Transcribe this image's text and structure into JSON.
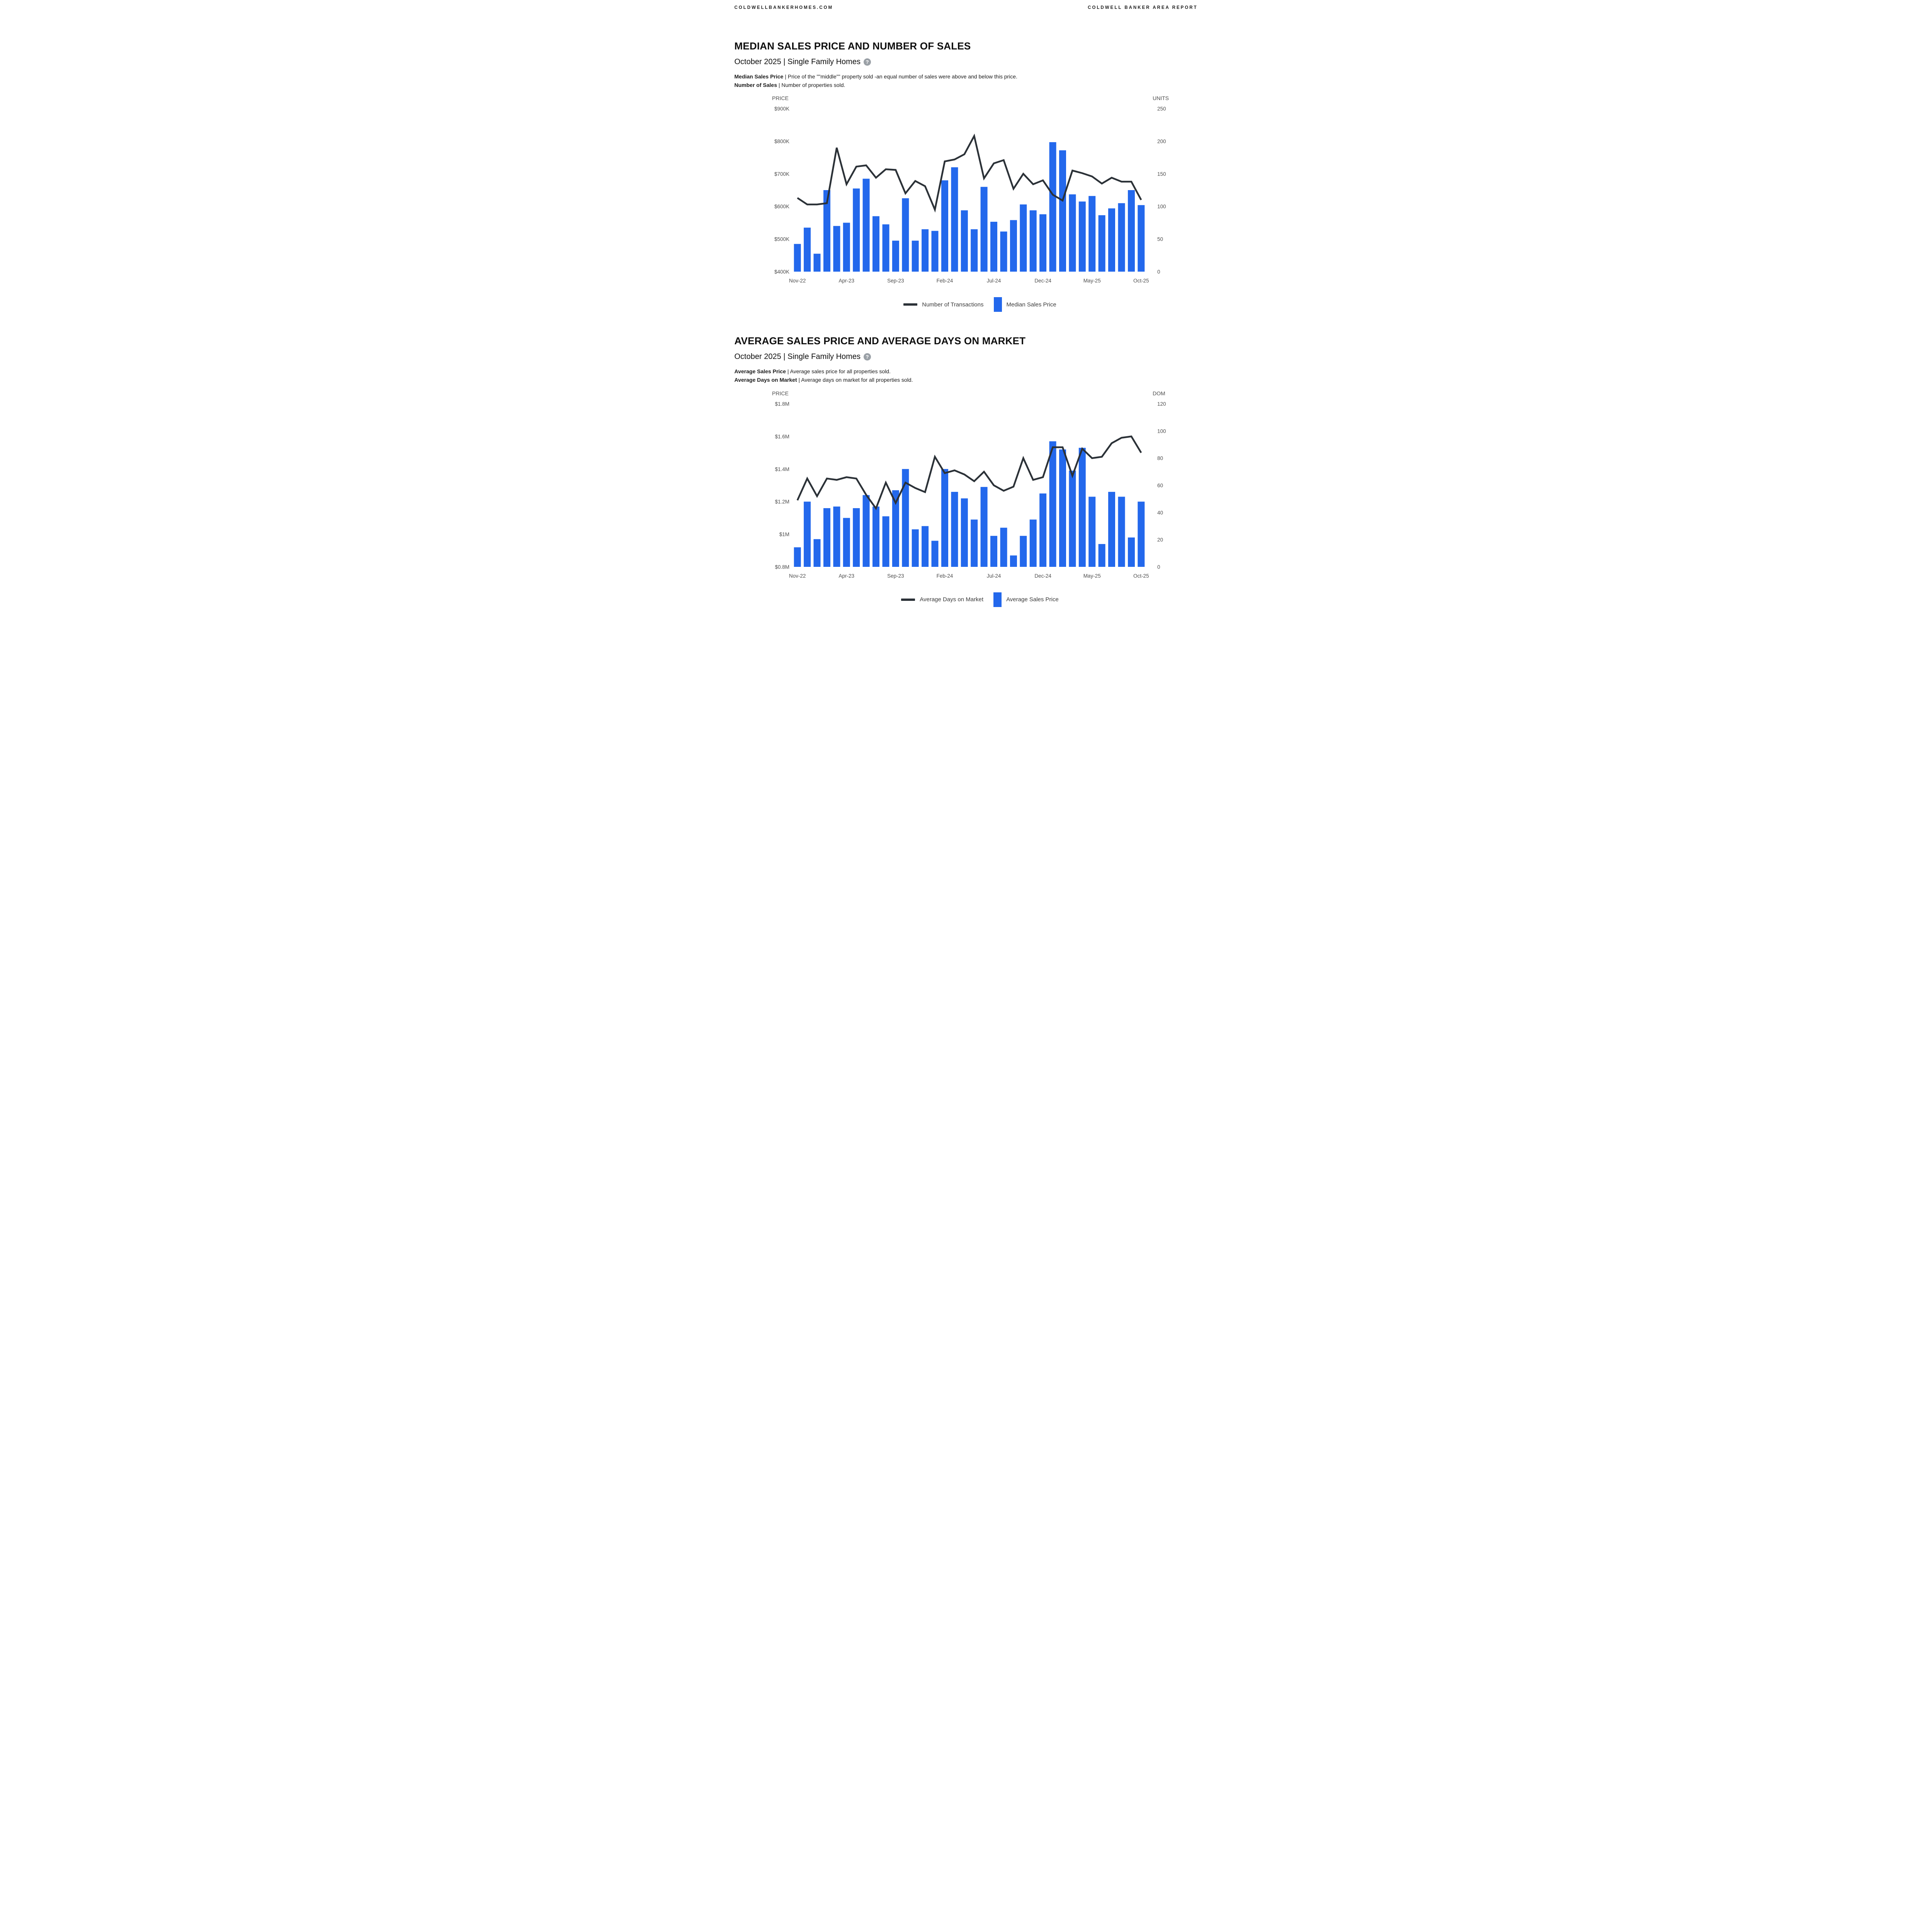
{
  "header": {
    "left": "COLDWELLBANKERHOMES.COM",
    "right": "COLDWELL BANKER AREA REPORT"
  },
  "sections": [
    {
      "title": "MEDIAN SALES PRICE AND NUMBER OF SALES",
      "subtitle": "October 2025 | Single Family Homes",
      "help_icon": "question-circle-icon",
      "definitions": [
        {
          "term": "Median Sales Price",
          "text": "| Price of the \"\"middle\"\" property sold -an equal number of sales were above and below this price."
        },
        {
          "term": "Number of Sales",
          "text": "| Number of properties sold."
        }
      ],
      "legend": [
        {
          "swatch": "line",
          "label": "Number of Transactions"
        },
        {
          "swatch": "bar",
          "label": "Median Sales Price"
        }
      ]
    },
    {
      "title": "AVERAGE SALES PRICE AND AVERAGE DAYS ON MARKET",
      "subtitle": "October 2025 | Single Family Homes",
      "help_icon": "question-circle-icon",
      "definitions": [
        {
          "term": "Average Sales Price",
          "text": "| Average sales price for all properties sold."
        },
        {
          "term": "Average Days on Market",
          "text": "| Average days on market for all properties sold."
        }
      ],
      "legend": [
        {
          "swatch": "line",
          "label": "Average Days on Market"
        },
        {
          "swatch": "bar",
          "label": "Average Sales Price"
        }
      ]
    }
  ],
  "chart_data": [
    {
      "type": "bar",
      "title": "Median Sales Price and Number of Sales",
      "categories": [
        "Nov-22",
        "Dec-22",
        "Jan-23",
        "Feb-23",
        "Mar-23",
        "Apr-23",
        "May-23",
        "Jun-23",
        "Jul-23",
        "Aug-23",
        "Sep-23",
        "Oct-23",
        "Nov-23",
        "Dec-23",
        "Jan-24",
        "Feb-24",
        "Mar-24",
        "Apr-24",
        "May-24",
        "Jun-24",
        "Jul-24",
        "Aug-24",
        "Sep-24",
        "Oct-24",
        "Nov-24",
        "Dec-24",
        "Jan-25",
        "Feb-25",
        "Mar-25",
        "Apr-25",
        "May-25",
        "Jun-25",
        "Jul-25",
        "Aug-25",
        "Sep-25",
        "Oct-25"
      ],
      "x_ticks": [
        {
          "index": 0,
          "label": "Nov-22"
        },
        {
          "index": 5,
          "label": "Apr-23"
        },
        {
          "index": 10,
          "label": "Sep-23"
        },
        {
          "index": 15,
          "label": "Feb-24"
        },
        {
          "index": 20,
          "label": "Jul-24"
        },
        {
          "index": 25,
          "label": "Dec-24"
        },
        {
          "index": 30,
          "label": "May-25"
        },
        {
          "index": 35,
          "label": "Oct-25"
        }
      ],
      "left_axis": {
        "label": "PRICE",
        "ticks": [
          "$900K",
          "$800K",
          "$700K",
          "$600K",
          "$500K",
          "$400K"
        ],
        "min": 400000,
        "max": 900000
      },
      "right_axis": {
        "label": "UNITS",
        "ticks": [
          "250",
          "200",
          "150",
          "100",
          "50",
          "0"
        ],
        "min": 0,
        "max": 250
      },
      "grid": false,
      "legend_position": "bottom",
      "series": [
        {
          "name": "Median Sales Price",
          "type": "bar",
          "axis": "left",
          "values": [
            485000,
            535000,
            455000,
            650000,
            540000,
            550000,
            655000,
            685000,
            570000,
            545000,
            495000,
            625000,
            495000,
            530000,
            525000,
            680000,
            720000,
            588000,
            530000,
            660000,
            553000,
            523000,
            558000,
            606000,
            588000,
            576000,
            797000,
            772000,
            637000,
            615000,
            632000,
            573000,
            594000,
            610000,
            650000,
            604000
          ]
        },
        {
          "name": "Number of Transactions",
          "type": "line",
          "axis": "right",
          "values": [
            113,
            103,
            103,
            105,
            190,
            134,
            161,
            163,
            144,
            157,
            156,
            120,
            139,
            131,
            95,
            169,
            172,
            180,
            208,
            143,
            166,
            171,
            127,
            150,
            134,
            140,
            118,
            109,
            155,
            151,
            146,
            135,
            144,
            138,
            138,
            110
          ]
        }
      ]
    },
    {
      "type": "bar",
      "title": "Average Sales Price and Average Days on Market",
      "categories": [
        "Nov-22",
        "Dec-22",
        "Jan-23",
        "Feb-23",
        "Mar-23",
        "Apr-23",
        "May-23",
        "Jun-23",
        "Jul-23",
        "Aug-23",
        "Sep-23",
        "Oct-23",
        "Nov-23",
        "Dec-23",
        "Jan-24",
        "Feb-24",
        "Mar-24",
        "Apr-24",
        "May-24",
        "Jun-24",
        "Jul-24",
        "Aug-24",
        "Sep-24",
        "Oct-24",
        "Nov-24",
        "Dec-24",
        "Jan-25",
        "Feb-25",
        "Mar-25",
        "Apr-25",
        "May-25",
        "Jun-25",
        "Jul-25",
        "Aug-25",
        "Sep-25",
        "Oct-25"
      ],
      "x_ticks": [
        {
          "index": 0,
          "label": "Nov-22"
        },
        {
          "index": 5,
          "label": "Apr-23"
        },
        {
          "index": 10,
          "label": "Sep-23"
        },
        {
          "index": 15,
          "label": "Feb-24"
        },
        {
          "index": 20,
          "label": "Jul-24"
        },
        {
          "index": 25,
          "label": "Dec-24"
        },
        {
          "index": 30,
          "label": "May-25"
        },
        {
          "index": 35,
          "label": "Oct-25"
        }
      ],
      "left_axis": {
        "label": "PRICE",
        "ticks": [
          "$1.8M",
          "$1.6M",
          "$1.4M",
          "$1.2M",
          "$1M",
          "$0.8M"
        ],
        "min": 800000,
        "max": 1800000
      },
      "right_axis": {
        "label": "DOM",
        "ticks": [
          "120",
          "100",
          "80",
          "60",
          "40",
          "20",
          "0"
        ],
        "min": 0,
        "max": 120
      },
      "grid": false,
      "legend_position": "bottom",
      "series": [
        {
          "name": "Average Sales Price",
          "type": "bar",
          "axis": "left",
          "values": [
            920000,
            1200000,
            970000,
            1160000,
            1170000,
            1100000,
            1160000,
            1240000,
            1170000,
            1110000,
            1270000,
            1400000,
            1030000,
            1050000,
            960000,
            1400000,
            1260000,
            1220000,
            1090000,
            1290000,
            990000,
            1040000,
            870000,
            990000,
            1090000,
            1250000,
            1570000,
            1520000,
            1390000,
            1530000,
            1230000,
            940000,
            1260000,
            1230000,
            980000,
            1200000
          ]
        },
        {
          "name": "Average Days on Market",
          "type": "line",
          "axis": "right",
          "values": [
            49,
            65,
            52,
            65,
            64,
            66,
            65,
            53,
            43,
            62,
            47,
            62,
            58,
            55,
            81,
            69,
            71,
            68,
            63,
            70,
            60,
            56,
            59,
            80,
            64,
            66,
            88,
            88,
            67,
            87,
            80,
            81,
            91,
            95,
            96,
            84
          ]
        }
      ]
    }
  ],
  "colors": {
    "bar": "#2368ec",
    "line": "#2b3137",
    "help": "#9aa0a6"
  }
}
